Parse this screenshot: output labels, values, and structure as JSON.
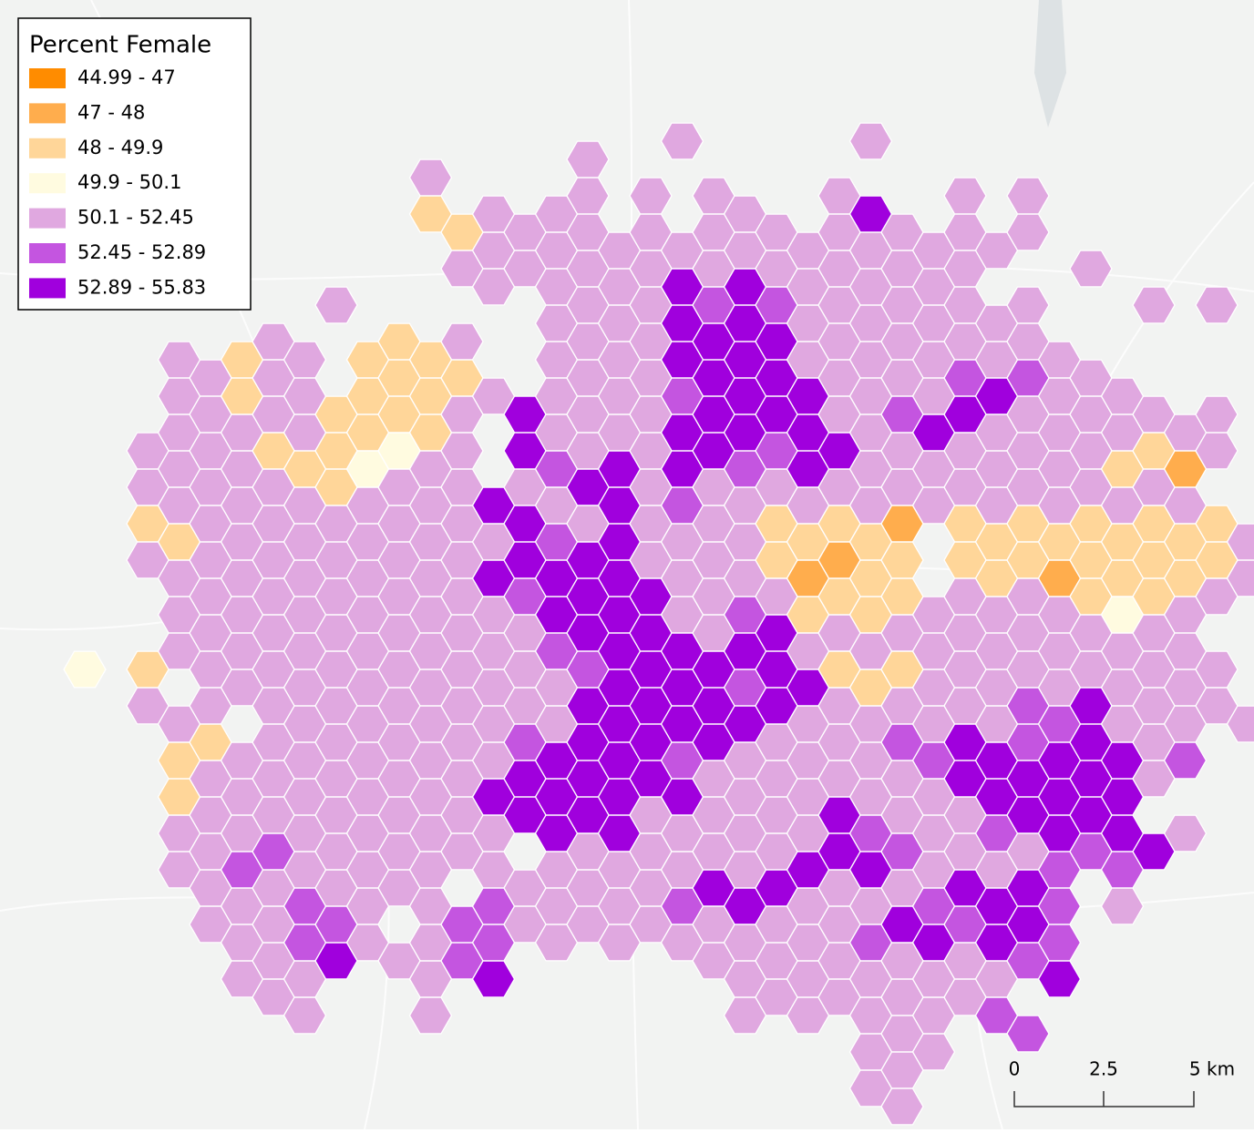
{
  "legend": {
    "title": "Percent Female",
    "classes": [
      {
        "label": "44.99 - 47",
        "color": "#ff8c00"
      },
      {
        "label": "47 - 48",
        "color": "#ffad4d"
      },
      {
        "label": "48 - 49.9",
        "color": "#ffd699"
      },
      {
        "label": "49.9 - 50.1",
        "color": "#fffbe0"
      },
      {
        "label": "50.1 - 52.45",
        "color": "#e0a8e0"
      },
      {
        "label": "52.45 - 52.89",
        "color": "#c455e0"
      },
      {
        "label": "52.89 - 55.83",
        "color": "#a000dd"
      }
    ]
  },
  "scale_bar": {
    "labels": [
      "0",
      "2.5",
      "5 km"
    ]
  }
}
